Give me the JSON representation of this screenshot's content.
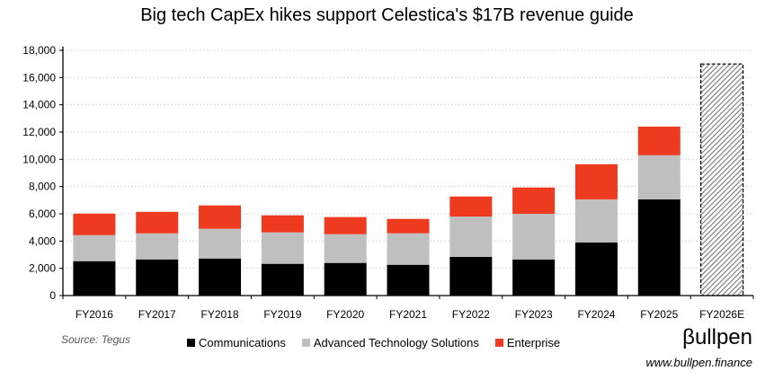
{
  "chart_data": {
    "type": "bar",
    "stacked": true,
    "title": "Big tech CapEx hikes support Celestica's $17B revenue guide",
    "categories": [
      "FY2016",
      "FY2017",
      "FY2018",
      "FY2019",
      "FY2020",
      "FY2021",
      "FY2022",
      "FY2023",
      "FY2024",
      "FY2025",
      "FY2026E"
    ],
    "series": [
      {
        "name": "Communications",
        "color": "#000000",
        "values": [
          2525,
          2655,
          2720,
          2330,
          2395,
          2260,
          2835,
          2650,
          3900,
          7060,
          null
        ]
      },
      {
        "name": "Advanced Technology Solutions",
        "color": "#bfbfbf",
        "values": [
          1910,
          1910,
          2180,
          2305,
          2110,
          2310,
          2965,
          3350,
          3160,
          3240,
          null
        ]
      },
      {
        "name": "Enterprise",
        "color": "#ee3a1f",
        "values": [
          1580,
          1580,
          1715,
          1255,
          1255,
          1055,
          1470,
          1930,
          2580,
          2100,
          null
        ]
      }
    ],
    "guide": {
      "category": "FY2026E",
      "value": 17000,
      "style": "hatched"
    },
    "ylim": [
      0,
      18000
    ],
    "yticks": [
      "0",
      "2,000",
      "4,000",
      "6,000",
      "8,000",
      "10,000",
      "12,000",
      "14,000",
      "16,000",
      "18,000"
    ],
    "grid": true,
    "legend": "bottom"
  },
  "footer": {
    "source": "Source: Tegus",
    "logo": "βullpen",
    "site": "www.bullpen.finance"
  }
}
